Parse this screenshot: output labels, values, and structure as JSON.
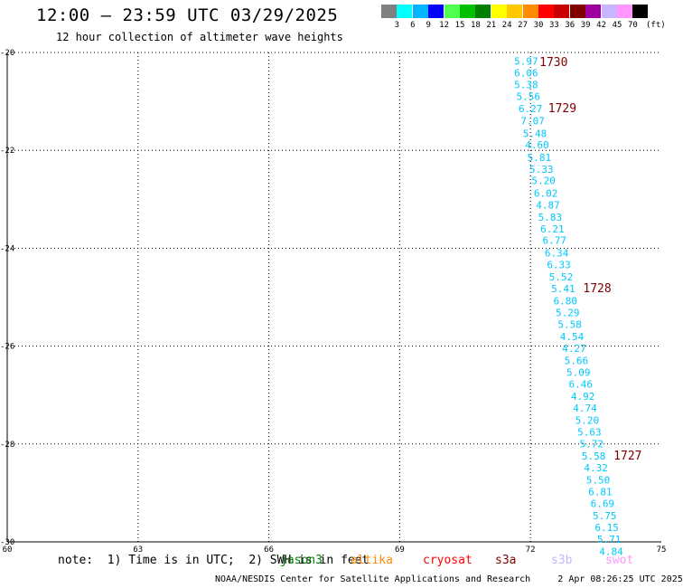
{
  "header": {
    "title": "12:00 – 23:59 UTC 03/29/2025",
    "subtitle": "12 hour collection of altimeter wave heights"
  },
  "colorbar": {
    "labels": [
      "3",
      "6",
      "9",
      "12",
      "15",
      "18",
      "21",
      "24",
      "27",
      "30",
      "33",
      "36",
      "39",
      "42",
      "45",
      "70"
    ],
    "unit": "(ft)",
    "colors": [
      "#808080",
      "#00ffff",
      "#00b4ff",
      "#0000ff",
      "#50ff50",
      "#00c000",
      "#008000",
      "#ffff00",
      "#ffc800",
      "#ff8c00",
      "#ff0000",
      "#c80000",
      "#800000",
      "#a000a0",
      "#c8b4ff",
      "#ff96ff",
      "#000000"
    ]
  },
  "footer": {
    "note": "note:  1) Time is in UTC;  2) SWH is in feet",
    "satellites": [
      {
        "label": "jason3",
        "color": "#008000"
      },
      {
        "label": "altika",
        "color": "#ff8c00"
      },
      {
        "label": "cryosat",
        "color": "#ff0000"
      },
      {
        "label": "s3a",
        "color": "#800000"
      },
      {
        "label": "s3b",
        "color": "#c8b4ff"
      },
      {
        "label": "swot",
        "color": "#ff96ff"
      }
    ],
    "credit": "NOAA/NESDIS Center for Satellite Applications and Research     2 Apr 08:26:25 UTC 2025"
  },
  "chart_data": {
    "type": "scatter",
    "xlim": [
      60,
      75
    ],
    "ylim": [
      -30,
      -20
    ],
    "xticks": [
      "60",
      "63",
      "66",
      "69",
      "72",
      "75"
    ],
    "yticks": [
      "-20",
      "-22",
      "-24",
      "-26",
      "-28",
      "-30"
    ],
    "grid": true,
    "points": [
      {
        "x": 71.9,
        "y": -20.18,
        "label": "5.97"
      },
      {
        "x": 71.9,
        "y": -20.42,
        "label": "6.06"
      },
      {
        "x": 71.9,
        "y": -20.66,
        "label": "5.38"
      },
      {
        "x": 71.95,
        "y": -20.9,
        "label": "5.56"
      },
      {
        "x": 72.0,
        "y": -21.15,
        "label": "6.27"
      },
      {
        "x": 72.05,
        "y": -21.4,
        "label": "7.07"
      },
      {
        "x": 72.1,
        "y": -21.65,
        "label": "5.48"
      },
      {
        "x": 72.15,
        "y": -21.89,
        "label": "4.60"
      },
      {
        "x": 72.2,
        "y": -22.14,
        "label": "5.81"
      },
      {
        "x": 72.25,
        "y": -22.38,
        "label": "5.33"
      },
      {
        "x": 72.3,
        "y": -22.62,
        "label": "5.20"
      },
      {
        "x": 72.35,
        "y": -22.87,
        "label": "6.02"
      },
      {
        "x": 72.4,
        "y": -23.11,
        "label": "4.87"
      },
      {
        "x": 72.45,
        "y": -23.36,
        "label": "5.83"
      },
      {
        "x": 72.5,
        "y": -23.6,
        "label": "6.21"
      },
      {
        "x": 72.55,
        "y": -23.84,
        "label": "6.77"
      },
      {
        "x": 72.6,
        "y": -24.09,
        "label": "6.34"
      },
      {
        "x": 72.65,
        "y": -24.33,
        "label": "6.33"
      },
      {
        "x": 72.7,
        "y": -24.58,
        "label": "5.52"
      },
      {
        "x": 72.75,
        "y": -24.82,
        "label": "5.41"
      },
      {
        "x": 72.8,
        "y": -25.07,
        "label": "6.80"
      },
      {
        "x": 72.85,
        "y": -25.31,
        "label": "5.29"
      },
      {
        "x": 72.9,
        "y": -25.55,
        "label": "5.58"
      },
      {
        "x": 72.95,
        "y": -25.8,
        "label": "4.54"
      },
      {
        "x": 73.0,
        "y": -26.04,
        "label": "4.27"
      },
      {
        "x": 73.05,
        "y": -26.29,
        "label": "5.66"
      },
      {
        "x": 73.1,
        "y": -26.53,
        "label": "5.09"
      },
      {
        "x": 73.15,
        "y": -26.77,
        "label": "6.46"
      },
      {
        "x": 73.2,
        "y": -27.02,
        "label": "4.92"
      },
      {
        "x": 73.25,
        "y": -27.26,
        "label": "4.74"
      },
      {
        "x": 73.3,
        "y": -27.51,
        "label": "5.20"
      },
      {
        "x": 73.35,
        "y": -27.75,
        "label": "5.63"
      },
      {
        "x": 73.4,
        "y": -27.99,
        "label": "5.72"
      },
      {
        "x": 73.45,
        "y": -28.24,
        "label": "5.58"
      },
      {
        "x": 73.5,
        "y": -28.48,
        "label": "4.32"
      },
      {
        "x": 73.55,
        "y": -28.73,
        "label": "5.50"
      },
      {
        "x": 73.6,
        "y": -28.97,
        "label": "6.81"
      },
      {
        "x": 73.65,
        "y": -29.21,
        "label": "6.69"
      },
      {
        "x": 73.7,
        "y": -29.46,
        "label": "5.75"
      },
      {
        "x": 73.75,
        "y": -29.7,
        "label": "6.15"
      },
      {
        "x": 73.8,
        "y": -29.94,
        "label": "5.71"
      },
      {
        "x": 73.85,
        "y": -30.19,
        "label": "4.84"
      }
    ],
    "time_labels": [
      {
        "x": 71.75,
        "y": -20.2,
        "label": "1730"
      },
      {
        "x": 71.95,
        "y": -21.15,
        "label": "1729"
      },
      {
        "x": 72.75,
        "y": -24.82,
        "label": "1728"
      },
      {
        "x": 73.45,
        "y": -28.24,
        "label": "1727"
      }
    ],
    "point_color": "#00c8ff",
    "time_color": "#800000"
  }
}
